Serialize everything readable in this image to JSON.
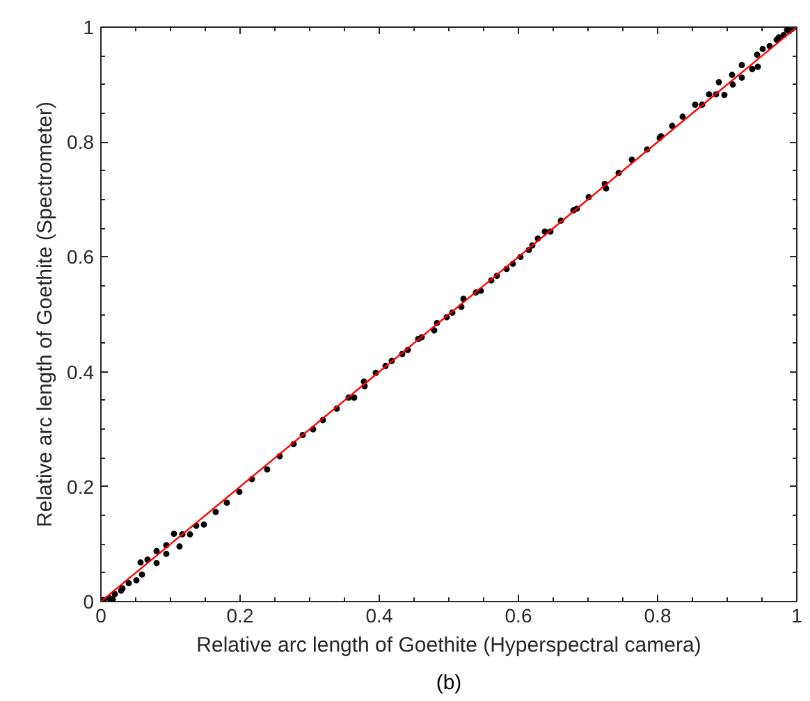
{
  "chart_data": {
    "type": "scatter",
    "xlabel": "Relative arc length of Goethite (Hyperspectral camera)",
    "ylabel": "Relative arc length of Goethite (Spectrometer)",
    "annotations": [
      "(b)"
    ],
    "xlim": [
      0,
      1
    ],
    "ylim": [
      0,
      1
    ],
    "xticks": [
      0,
      0.2,
      0.4,
      0.6,
      0.8,
      1
    ],
    "yticks": [
      0,
      0.2,
      0.4,
      0.6,
      0.8,
      1
    ],
    "grid": false,
    "marker": "circle",
    "series": [
      {
        "color": "#000000",
        "x": [
          0.004,
          0.012,
          0.017,
          0.02,
          0.029,
          0.031,
          0.04,
          0.051,
          0.057,
          0.059,
          0.067,
          0.08,
          0.08,
          0.094,
          0.094,
          0.105,
          0.113,
          0.117,
          0.128,
          0.137,
          0.148,
          0.165,
          0.181,
          0.199,
          0.217,
          0.239,
          0.257,
          0.277,
          0.29,
          0.305,
          0.319,
          0.339,
          0.356,
          0.364,
          0.378,
          0.379,
          0.395,
          0.409,
          0.418,
          0.433,
          0.441,
          0.456,
          0.461,
          0.479,
          0.483,
          0.497,
          0.505,
          0.518,
          0.521,
          0.539,
          0.546,
          0.561,
          0.569,
          0.583,
          0.592,
          0.603,
          0.615,
          0.62,
          0.628,
          0.638,
          0.646,
          0.661,
          0.679,
          0.684,
          0.701,
          0.724,
          0.726,
          0.744,
          0.763,
          0.785,
          0.803,
          0.805,
          0.821,
          0.836,
          0.854,
          0.864,
          0.874,
          0.884,
          0.888,
          0.896,
          0.907,
          0.908,
          0.921,
          0.921,
          0.936,
          0.944,
          0.943,
          0.951,
          0.961,
          0.971,
          0.974,
          0.981,
          0.986,
          0.989,
          0.993,
          0.996
        ],
        "values": [
          0.003,
          0.006,
          0.004,
          0.013,
          0.019,
          0.023,
          0.032,
          0.037,
          0.068,
          0.047,
          0.073,
          0.088,
          0.067,
          0.098,
          0.083,
          0.118,
          0.096,
          0.117,
          0.117,
          0.132,
          0.134,
          0.156,
          0.172,
          0.191,
          0.213,
          0.23,
          0.253,
          0.274,
          0.29,
          0.3,
          0.316,
          0.336,
          0.355,
          0.355,
          0.383,
          0.375,
          0.398,
          0.41,
          0.419,
          0.431,
          0.438,
          0.457,
          0.46,
          0.472,
          0.485,
          0.495,
          0.503,
          0.513,
          0.527,
          0.538,
          0.541,
          0.559,
          0.567,
          0.579,
          0.588,
          0.6,
          0.612,
          0.62,
          0.632,
          0.644,
          0.644,
          0.663,
          0.681,
          0.684,
          0.704,
          0.727,
          0.719,
          0.746,
          0.769,
          0.787,
          0.807,
          0.81,
          0.828,
          0.844,
          0.865,
          0.865,
          0.883,
          0.883,
          0.904,
          0.882,
          0.917,
          0.9,
          0.934,
          0.912,
          0.927,
          0.931,
          0.952,
          0.962,
          0.967,
          0.978,
          0.982,
          0.986,
          0.995,
          0.993,
          0.997,
          1.0
        ]
      },
      {
        "type": "line",
        "color": "#ff0000",
        "marker": "none",
        "x": [
          0,
          1
        ],
        "values": [
          0,
          1
        ]
      }
    ]
  }
}
